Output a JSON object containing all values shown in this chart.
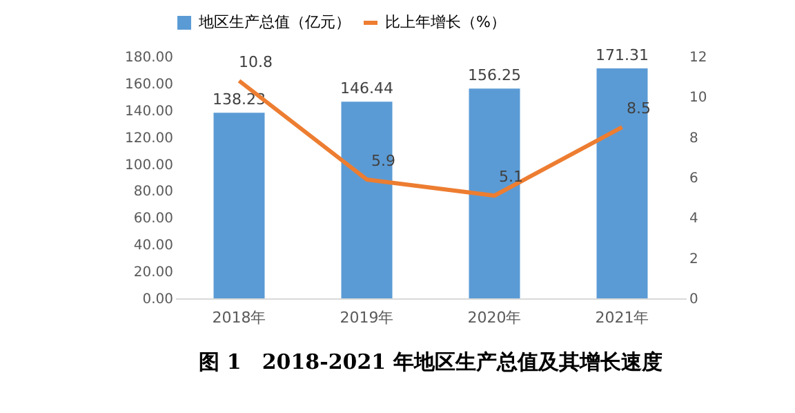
{
  "chart_data": {
    "type": "bar",
    "title": "图 1　2018-2021 年地区生产总值及其增长速度",
    "categories": [
      "2018年",
      "2019年",
      "2020年",
      "2021年"
    ],
    "series": [
      {
        "name": "地区生产总值（亿元）",
        "color": "#5b9bd5",
        "values": [
          138.23,
          146.44,
          156.25,
          171.31
        ]
      },
      {
        "name": "比上年增长（%）",
        "type": "line",
        "axis": "y2",
        "color": "#ed7d31",
        "values": [
          10.8,
          5.9,
          5.1,
          8.5
        ]
      }
    ],
    "ylim": [
      0,
      180
    ],
    "yticks": [
      {
        "value": 0,
        "label": "0.00"
      },
      {
        "value": 20,
        "label": "20.00"
      },
      {
        "value": 40,
        "label": "40.00"
      },
      {
        "value": 60,
        "label": "60.00"
      },
      {
        "value": 80,
        "label": "80.00"
      },
      {
        "value": 100,
        "label": "100.00"
      },
      {
        "value": 120,
        "label": "120.00"
      },
      {
        "value": 140,
        "label": "140.00"
      },
      {
        "value": 160,
        "label": "160.00"
      },
      {
        "value": 180,
        "label": "180.00"
      }
    ],
    "y2lim": [
      0,
      12
    ],
    "y2ticks": [
      0,
      2,
      4,
      6,
      8,
      10,
      12
    ],
    "data_labels": true,
    "legend": "top",
    "grid": false,
    "marker": "none",
    "line_style": "solid"
  }
}
